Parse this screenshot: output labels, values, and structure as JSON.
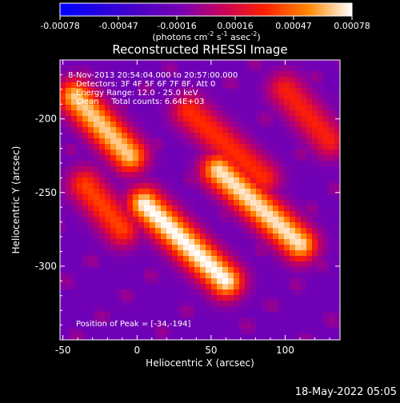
{
  "colorbar": {
    "ticks": [
      "-0.00078",
      "-0.00047",
      "-0.00016",
      "0.00016",
      "0.00047",
      "0.00078"
    ],
    "units_prefix": "(photons cm",
    "units_exp1": "-2",
    "units_mid": " s",
    "units_exp2": "-1",
    "units_mid2": " asec",
    "units_exp3": "-2",
    "units_suffix": ")"
  },
  "title": "Reconstructed RHESSI Image",
  "annotations": {
    "line1": "8-Nov-2013 20:54:04.000 to 20:57:00.000",
    "line2": "Detectors: 3F 4F 5F 6F 7F 8F, Att 0",
    "line3": "Energy Range: 12.0 - 25.0 keV",
    "line4": "Clean     Total counts: 6.64E+03",
    "peak": "Position of Peak = [-34,-194]"
  },
  "footer_timestamp": "18-May-2022 05:05",
  "chart_data": {
    "type": "heatmap",
    "title": "Reconstructed RHESSI Image",
    "xlabel": "Heliocentric X (arcsec)",
    "ylabel": "Heliocentric Y (arcsec)",
    "xlim": [
      -52,
      137
    ],
    "ylim": [
      -350,
      -160
    ],
    "x_ticks": [
      -50,
      0,
      50,
      100
    ],
    "y_ticks": [
      -200,
      -250,
      -300
    ],
    "x_tick_labels": [
      "-50",
      "0",
      "50",
      "100"
    ],
    "y_tick_labels": [
      "-200",
      "-250",
      "-300"
    ],
    "colorbar_range": [
      -0.00078,
      0.00078
    ],
    "colormap": [
      "#0000ff",
      "#4400c8",
      "#7a00b0",
      "#c40060",
      "#ff2000",
      "#ff8800",
      "#ffffff"
    ],
    "peak_position": [
      -34,
      -194
    ],
    "bright_ridges": [
      {
        "from": [
          -42,
          -185
        ],
        "to": [
          -5,
          -225
        ],
        "level": 0.9
      },
      {
        "from": [
          5,
          -258
        ],
        "to": [
          60,
          -310
        ],
        "level": 1.0
      },
      {
        "from": [
          55,
          -235
        ],
        "to": [
          110,
          -285
        ],
        "level": 0.95
      },
      {
        "from": [
          35,
          -195
        ],
        "to": [
          85,
          -240
        ],
        "level": 0.55
      },
      {
        "from": [
          -35,
          -245
        ],
        "to": [
          -10,
          -275
        ],
        "level": 0.6
      },
      {
        "from": [
          100,
          -180
        ],
        "to": [
          130,
          -215
        ],
        "level": 0.5
      }
    ]
  }
}
